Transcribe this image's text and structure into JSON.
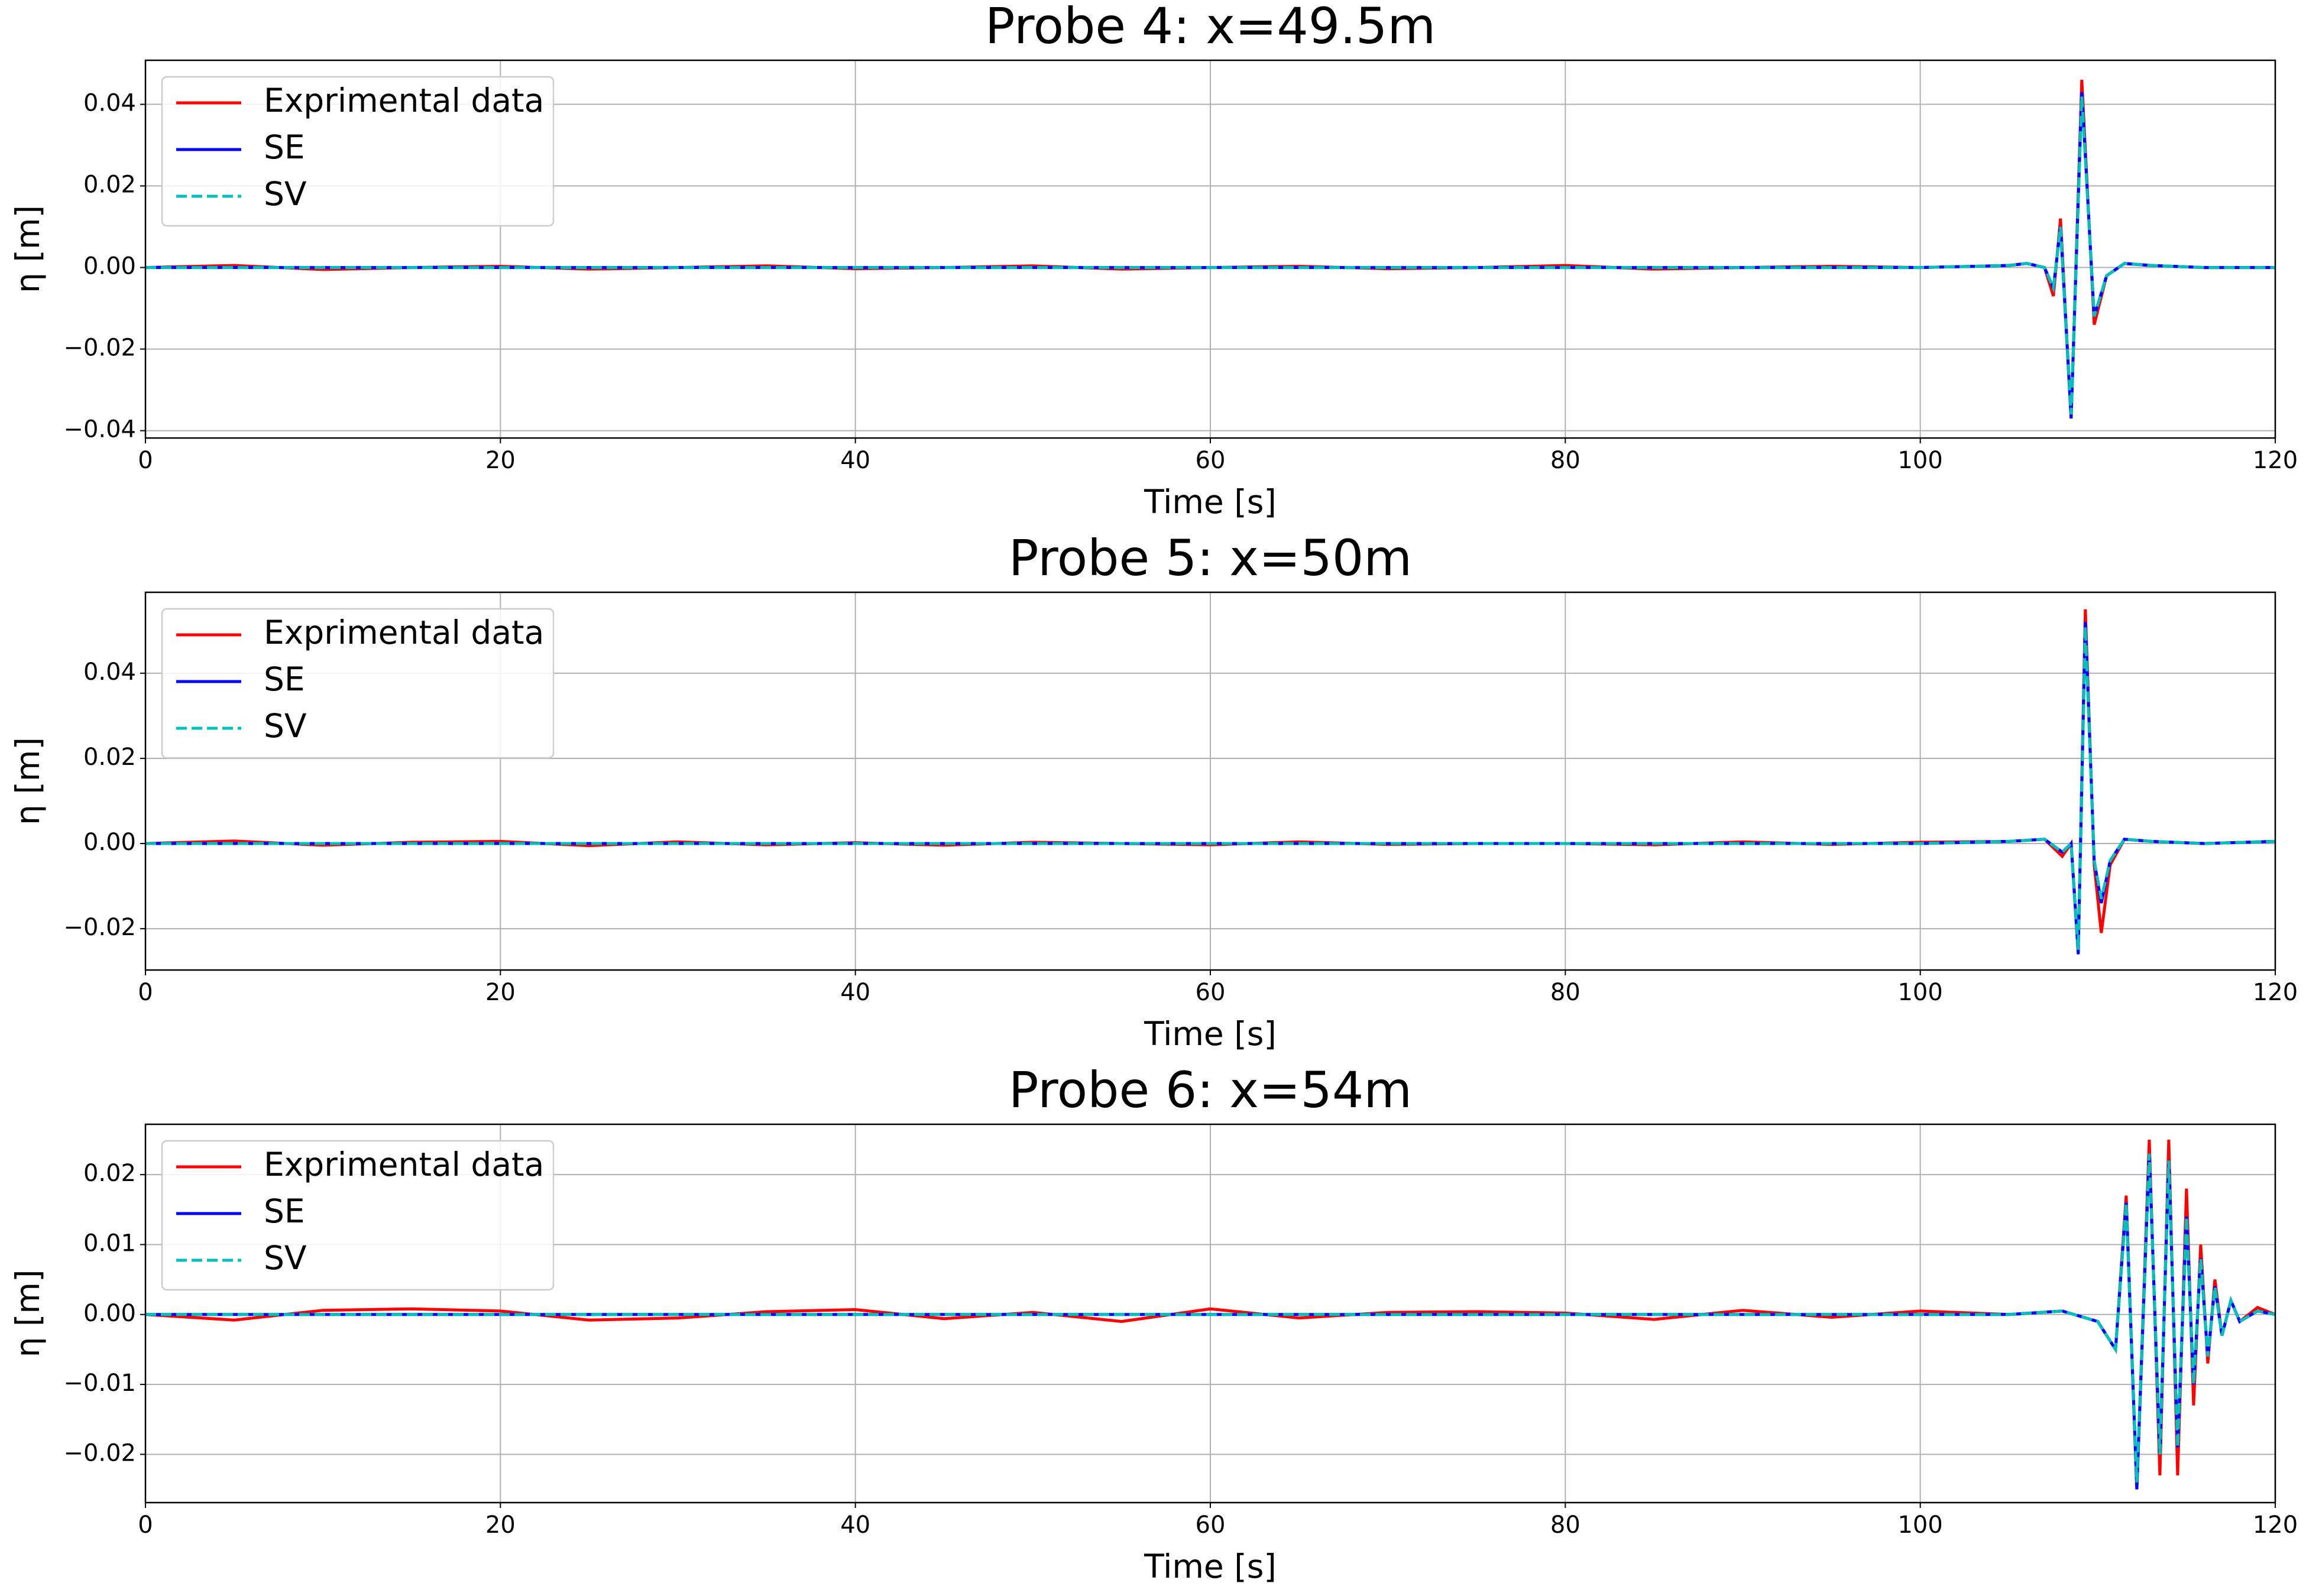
{
  "chart_data": [
    {
      "type": "line",
      "title": "Probe 4: x=49.5m",
      "xlabel": "Time [s]",
      "ylabel": "η [m]",
      "grid": true,
      "legend": "upper left",
      "xlim": [
        0,
        120
      ],
      "xticks": [
        0,
        20,
        40,
        60,
        80,
        100,
        120
      ],
      "ylim": [
        -0.0418,
        0.0508
      ],
      "yticks": [
        {
          "value": -0.04,
          "label": "−0.04"
        },
        {
          "value": -0.02,
          "label": "−0.02"
        },
        {
          "value": 0,
          "label": "0.00"
        },
        0.02,
        0.04
      ],
      "x": [
        0,
        5,
        10,
        15,
        20,
        25,
        30,
        35,
        40,
        45,
        50,
        55,
        60,
        65,
        70,
        75,
        80,
        85,
        90,
        95,
        100,
        105,
        106,
        107,
        107.5,
        107.9,
        108.5,
        109.1,
        109.8,
        110.5,
        111.5,
        113,
        116,
        120
      ],
      "series": [
        {
          "name": "Exprimental data",
          "color": "#ff0000",
          "linestyle": "solid",
          "values": [
            0,
            0.0005,
            -0.0005,
            0,
            0.0003,
            -0.0004,
            0,
            0.0004,
            -0.0003,
            0,
            0.0004,
            -0.0004,
            0,
            0.0003,
            -0.0003,
            0,
            0.0005,
            -0.0004,
            0,
            0.0003,
            0,
            0.0005,
            0.001,
            0,
            -0.007,
            0.012,
            -0.037,
            0.046,
            -0.014,
            -0.002,
            0.001,
            0.0005,
            0,
            0
          ]
        },
        {
          "name": "SE",
          "color": "#0000ff",
          "linestyle": "solid",
          "values": [
            0,
            0,
            0,
            0,
            0,
            0,
            0,
            0,
            0,
            0,
            0,
            0,
            0,
            0,
            0,
            0,
            0,
            0,
            0,
            0,
            0,
            0.0005,
            0.001,
            0,
            -0.005,
            0.01,
            -0.037,
            0.043,
            -0.012,
            -0.002,
            0.001,
            0.0005,
            0,
            0
          ]
        },
        {
          "name": "SV",
          "color": "#00bfbf",
          "linestyle": "dashed",
          "values": [
            0,
            0,
            0,
            0,
            0,
            0,
            0,
            0,
            0,
            0,
            0,
            0,
            0,
            0,
            0,
            0,
            0,
            0,
            0,
            0,
            0,
            0.0005,
            0.001,
            0,
            -0.005,
            0.01,
            -0.036,
            0.042,
            -0.012,
            -0.002,
            0.001,
            0.0005,
            0,
            0
          ]
        }
      ]
    },
    {
      "type": "line",
      "title": "Probe 5: x=50m",
      "xlabel": "Time [s]",
      "ylabel": "η [m]",
      "grid": true,
      "legend": "upper left",
      "xlim": [
        0,
        120
      ],
      "xticks": [
        0,
        20,
        40,
        60,
        80,
        100,
        120
      ],
      "ylim": [
        -0.0297,
        0.059
      ],
      "yticks": [
        {
          "value": -0.02,
          "label": "−0.02"
        },
        {
          "value": 0,
          "label": "0.00"
        },
        0.02,
        0.04
      ],
      "x": [
        0,
        5,
        10,
        15,
        20,
        25,
        30,
        35,
        40,
        45,
        50,
        55,
        60,
        65,
        70,
        75,
        80,
        85,
        90,
        95,
        100,
        105,
        107,
        108,
        108.5,
        108.9,
        109.3,
        109.8,
        110.2,
        110.7,
        111.5,
        113,
        116,
        120
      ],
      "series": [
        {
          "name": "Exprimental data",
          "color": "#ff0000",
          "linestyle": "solid",
          "values": [
            0,
            0.0006,
            -0.0004,
            0.0003,
            0.0005,
            -0.0005,
            0.0004,
            -0.0003,
            0.0002,
            -0.0004,
            0.0003,
            0,
            -0.0003,
            0.0004,
            -0.0002,
            0,
            0,
            -0.0003,
            0.0004,
            -0.0002,
            0.0003,
            0.0005,
            0.001,
            -0.003,
            0,
            -0.025,
            0.055,
            -0.005,
            -0.021,
            -0.005,
            0.001,
            0.0005,
            0,
            0.0005
          ]
        },
        {
          "name": "SE",
          "color": "#0000ff",
          "linestyle": "solid",
          "values": [
            0,
            0,
            0,
            0,
            0,
            0,
            0,
            0,
            0,
            0,
            0,
            0,
            0,
            0,
            0,
            0,
            0,
            0,
            0,
            0,
            0,
            0.0005,
            0.001,
            -0.002,
            0,
            -0.026,
            0.052,
            -0.004,
            -0.014,
            -0.004,
            0.001,
            0.0005,
            0,
            0.0005
          ]
        },
        {
          "name": "SV",
          "color": "#00bfbf",
          "linestyle": "dashed",
          "values": [
            0,
            0,
            0,
            0,
            0,
            0,
            0,
            0,
            0,
            0,
            0,
            0,
            0,
            0,
            0,
            0,
            0,
            0,
            0,
            0,
            0,
            0.0005,
            0.001,
            -0.002,
            0,
            -0.025,
            0.051,
            -0.004,
            -0.013,
            -0.004,
            0.001,
            0.0005,
            0,
            0.0005
          ]
        }
      ]
    },
    {
      "type": "line",
      "title": "Probe 6: x=54m",
      "xlabel": "Time [s]",
      "ylabel": "η [m]",
      "grid": true,
      "legend": "upper left",
      "xlim": [
        0,
        120
      ],
      "xticks": [
        0,
        20,
        40,
        60,
        80,
        100,
        120
      ],
      "ylim": [
        -0.0269,
        0.0272
      ],
      "yticks": [
        {
          "value": -0.02,
          "label": "−0.02"
        },
        {
          "value": -0.01,
          "label": "−0.01"
        },
        {
          "value": 0,
          "label": "0.00"
        },
        0.01,
        0.02
      ],
      "x": [
        0,
        5,
        10,
        15,
        20,
        25,
        30,
        35,
        40,
        45,
        50,
        55,
        60,
        65,
        70,
        75,
        80,
        85,
        90,
        95,
        100,
        105,
        108,
        110,
        111,
        111.6,
        112.2,
        112.9,
        113.5,
        114,
        114.5,
        115,
        115.4,
        115.8,
        116.2,
        116.6,
        117,
        117.5,
        118,
        119,
        120
      ],
      "series": [
        {
          "name": "Exprimental data",
          "color": "#ff0000",
          "linestyle": "solid",
          "values": [
            0,
            -0.0008,
            0.0006,
            0.0008,
            0.0005,
            -0.0008,
            -0.0005,
            0.0004,
            0.0007,
            -0.0006,
            0.0003,
            -0.001,
            0.0008,
            -0.0005,
            0.0003,
            0.0004,
            0.0002,
            -0.0007,
            0.0006,
            -0.0004,
            0.0005,
            0,
            0.0005,
            -0.001,
            -0.005,
            0.017,
            -0.025,
            0.025,
            -0.023,
            0.025,
            -0.023,
            0.018,
            -0.013,
            0.01,
            -0.007,
            0.005,
            -0.003,
            0.002,
            -0.001,
            0.001,
            0
          ]
        },
        {
          "name": "SE",
          "color": "#0000ff",
          "linestyle": "solid",
          "values": [
            0,
            0,
            0,
            0,
            0,
            0,
            0,
            0,
            0,
            0,
            0,
            0,
            0,
            0,
            0,
            0,
            0,
            0,
            0,
            0,
            0,
            0,
            0.0005,
            -0.001,
            -0.005,
            0.016,
            -0.025,
            0.023,
            -0.02,
            0.022,
            -0.019,
            0.014,
            -0.01,
            0.008,
            -0.006,
            0.004,
            -0.003,
            0.002,
            -0.001,
            0.0005,
            0
          ]
        },
        {
          "name": "SV",
          "color": "#00bfbf",
          "linestyle": "dashed",
          "values": [
            0,
            0,
            0,
            0,
            0,
            0,
            0,
            0,
            0,
            0,
            0,
            0,
            0,
            0,
            0,
            0,
            0,
            0,
            0,
            0,
            0,
            0,
            0.0005,
            -0.001,
            -0.005,
            0.016,
            -0.024,
            0.023,
            -0.02,
            0.022,
            -0.019,
            0.014,
            -0.01,
            0.008,
            -0.006,
            0.004,
            -0.003,
            0.002,
            -0.001,
            0.0005,
            0
          ]
        }
      ]
    }
  ]
}
